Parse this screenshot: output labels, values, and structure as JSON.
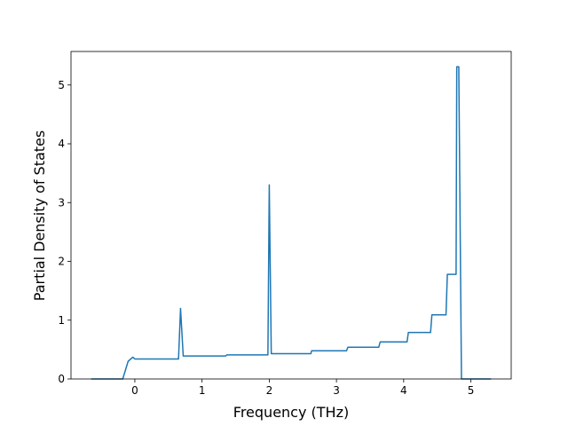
{
  "chart_data": {
    "type": "line",
    "xlabel": "Frequency (THz)",
    "ylabel": "Partial Density of States",
    "x": [
      -0.65,
      -0.18,
      -0.1,
      -0.03,
      0,
      0.65,
      0.68,
      0.72,
      1.35,
      1.37,
      1.98,
      2.0,
      2.03,
      2.62,
      2.63,
      3.15,
      3.17,
      3.63,
      3.65,
      4.05,
      4.07,
      4.4,
      4.42,
      4.63,
      4.65,
      4.78,
      4.79,
      4.82,
      4.86,
      5.3
    ],
    "series": [
      {
        "color": "#1f77b4",
        "values": [
          0,
          0,
          0.3,
          0.37,
          0.34,
          0.34,
          1.2,
          0.39,
          0.39,
          0.41,
          0.41,
          3.3,
          0.43,
          0.43,
          0.48,
          0.48,
          0.54,
          0.54,
          0.63,
          0.63,
          0.79,
          0.79,
          1.09,
          1.09,
          1.78,
          1.78,
          5.31,
          5.31,
          0,
          0
        ]
      }
    ],
    "xlim": [
      -0.95,
      5.6
    ],
    "ylim": [
      0,
      5.57
    ],
    "xticks": [
      0,
      1,
      2,
      3,
      4,
      5
    ],
    "yticks": [
      0,
      1,
      2,
      3,
      4,
      5
    ],
    "grid": false
  }
}
